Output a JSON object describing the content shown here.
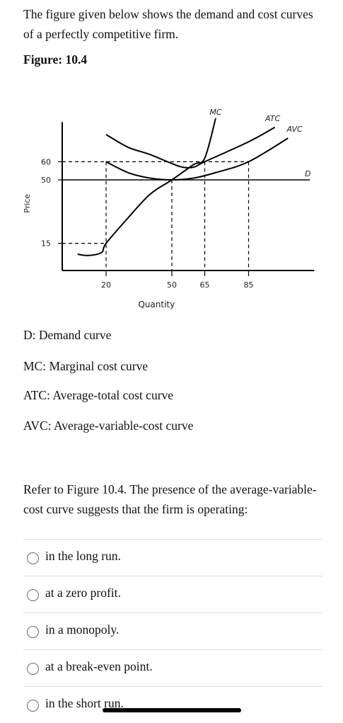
{
  "intro_text": "The figure given below shows the demand and cost curves of a perfectly competitive firm.",
  "figure_title": "Figure: 10.4",
  "chart_data": {
    "type": "line",
    "xlabel": "Quantity",
    "ylabel": "Price",
    "x_ticks": [
      "20",
      "50",
      "65",
      "85"
    ],
    "y_ticks": [
      "15",
      "50",
      "60"
    ],
    "series": [
      {
        "name": "MC",
        "x": [
          7,
          12,
          18,
          20,
          30,
          40,
          50,
          60,
          65,
          70
        ],
        "y": [
          9,
          8.3,
          10,
          15,
          29,
          42,
          50,
          58.5,
          62,
          84
        ]
      },
      {
        "name": "ATC",
        "x": [
          20,
          30,
          40,
          50,
          55,
          60,
          65,
          85,
          97
        ],
        "y": [
          75,
          68,
          64,
          59,
          57,
          57,
          60,
          71,
          79
        ]
      },
      {
        "name": "AVC",
        "x": [
          20,
          30,
          40,
          50,
          60,
          70,
          85,
          103
        ],
        "y": [
          60,
          54,
          51,
          50,
          51,
          54,
          60,
          73
        ]
      },
      {
        "name": "D",
        "x": [
          0,
          113
        ],
        "y": [
          50,
          50
        ]
      }
    ],
    "reference_lines": [
      {
        "from": [
          0,
          60
        ],
        "to": [
          85,
          60
        ]
      },
      {
        "from": [
          0,
          15
        ],
        "to": [
          20,
          15
        ]
      }
    ],
    "ylim": [
      0,
      85
    ],
    "xlim": [
      0,
      113
    ],
    "grid": false
  },
  "legend": [
    "D: Demand curve",
    "MC: Marginal cost curve",
    "ATC: Average-total cost curve",
    "AVC: Average-variable-cost curve"
  ],
  "question_text": "Refer to Figure 10.4. The presence of the average-variable-cost curve suggests that the firm is operating:",
  "options": [
    "in the long run.",
    "at a zero profit.",
    "in a monopoly.",
    "at a break-even point.",
    "in the short run."
  ]
}
